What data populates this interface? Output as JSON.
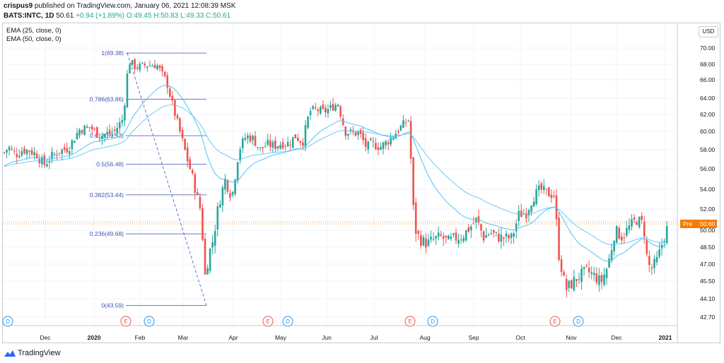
{
  "header": {
    "publisher": "crispus9",
    "published_text": "published on TradingView.com, January 06, 2021 12:08:39 MSK",
    "symbol": "BATS:INTC, 1D",
    "last": "50.61",
    "change": "+0.94 (+1.89%)",
    "ohlc": "O:49.45 H:50.83 L:49.33 C:50.61"
  },
  "indicators": [
    "EMA (25, close, 0)",
    "EMA (50, close, 0)"
  ],
  "currency_button": "USD",
  "pre_label": {
    "tag": "Pre",
    "value": "50.60"
  },
  "price_axis": {
    "ticks": [
      "70.00",
      "68.00",
      "66.00",
      "64.00",
      "62.00",
      "60.00",
      "58.00",
      "56.00",
      "54.00",
      "52.00",
      "50.00",
      "48.50",
      "47.00",
      "45.50",
      "44.10",
      "42.70"
    ]
  },
  "time_axis": {
    "ticks": [
      "Dec",
      "2020",
      "Feb",
      "Mar",
      "Apr",
      "May",
      "Jun",
      "Jul",
      "Aug",
      "Sep",
      "Oct",
      "Nov",
      "Dec",
      "2021"
    ]
  },
  "fib_levels": [
    {
      "label": "1(69.38)"
    },
    {
      "label": "0.786(63.86)"
    },
    {
      "label": "0.618(59.53)"
    },
    {
      "label": "0.5(56.48)"
    },
    {
      "label": "0.382(53.44)"
    },
    {
      "label": "0.236(49.68)"
    },
    {
      "label": "0(43.59)"
    }
  ],
  "events": [
    {
      "type": "D"
    },
    {
      "type": "E"
    },
    {
      "type": "D"
    },
    {
      "type": "E"
    },
    {
      "type": "D"
    },
    {
      "type": "E"
    },
    {
      "type": "D"
    },
    {
      "type": "E"
    },
    {
      "type": "D"
    }
  ],
  "footer": {
    "brand": "TradingView"
  },
  "colors": {
    "up": "#26a69a",
    "down": "#ef5350",
    "ema": "#4fc3f7",
    "fib": "#3f51b5",
    "pre": "#f57c00"
  },
  "chart_data": {
    "type": "candlestick",
    "symbol": "BATS:INTC",
    "interval": "1D",
    "ylim": [
      42.0,
      71.0
    ],
    "series": [
      {
        "name": "INTC",
        "close_path": [
          [
            0,
            57.3
          ],
          [
            10,
            58.3
          ],
          [
            20,
            57.5
          ],
          [
            30,
            58.0
          ],
          [
            40,
            57.9
          ],
          [
            50,
            57.5
          ],
          [
            60,
            56.4
          ],
          [
            70,
            57.2
          ],
          [
            80,
            57.8
          ],
          [
            95,
            58.2
          ],
          [
            110,
            60.2
          ],
          [
            125,
            60.5
          ],
          [
            140,
            59.5
          ],
          [
            160,
            60.0
          ],
          [
            172,
            61.5
          ],
          [
            180,
            68.4
          ],
          [
            190,
            67.6
          ],
          [
            205,
            67.9
          ],
          [
            220,
            67.9
          ],
          [
            235,
            65.5
          ],
          [
            245,
            62.2
          ],
          [
            255,
            59.2
          ],
          [
            262,
            57.2
          ],
          [
            270,
            55.2
          ],
          [
            276,
            53.5
          ],
          [
            282,
            51.8
          ],
          [
            288,
            46.0
          ],
          [
            294,
            48.0
          ],
          [
            300,
            49.3
          ],
          [
            306,
            52.0
          ],
          [
            316,
            55.0
          ],
          [
            326,
            53.2
          ],
          [
            336,
            58.0
          ],
          [
            346,
            59.5
          ],
          [
            356,
            59.2
          ],
          [
            366,
            58.0
          ],
          [
            376,
            58.6
          ],
          [
            386,
            58.4
          ],
          [
            396,
            58.7
          ],
          [
            406,
            58.7
          ],
          [
            416,
            59.5
          ],
          [
            426,
            58.8
          ],
          [
            436,
            62.4
          ],
          [
            446,
            62.6
          ],
          [
            456,
            62.3
          ],
          [
            466,
            62.8
          ],
          [
            476,
            63.4
          ],
          [
            486,
            60.0
          ],
          [
            496,
            59.8
          ],
          [
            506,
            59.8
          ],
          [
            516,
            58.3
          ],
          [
            526,
            58.6
          ],
          [
            536,
            58.3
          ],
          [
            546,
            58.9
          ],
          [
            556,
            59.7
          ],
          [
            566,
            60.6
          ],
          [
            576,
            61.4
          ],
          [
            584,
            50.2
          ],
          [
            592,
            49.2
          ],
          [
            602,
            48.8
          ],
          [
            612,
            49.2
          ],
          [
            622,
            49.4
          ],
          [
            632,
            49.0
          ],
          [
            642,
            49.3
          ],
          [
            652,
            49.5
          ],
          [
            662,
            50.2
          ],
          [
            672,
            51.0
          ],
          [
            682,
            49.4
          ],
          [
            692,
            49.8
          ],
          [
            702,
            49.4
          ],
          [
            712,
            49.3
          ],
          [
            722,
            49.3
          ],
          [
            732,
            51.5
          ],
          [
            742,
            51.6
          ],
          [
            752,
            53.2
          ],
          [
            762,
            54.0
          ],
          [
            772,
            53.6
          ],
          [
            782,
            53.4
          ],
          [
            788,
            48.0
          ],
          [
            798,
            44.8
          ],
          [
            808,
            45.4
          ],
          [
            818,
            46.0
          ],
          [
            828,
            46.4
          ],
          [
            838,
            46.0
          ],
          [
            848,
            45.4
          ],
          [
            858,
            46.9
          ],
          [
            868,
            50.0
          ],
          [
            878,
            49.4
          ],
          [
            888,
            50.3
          ],
          [
            898,
            51.0
          ],
          [
            908,
            50.6
          ],
          [
            914,
            47.0
          ],
          [
            920,
            46.6
          ],
          [
            928,
            47.4
          ],
          [
            936,
            49.2
          ],
          [
            944,
            50.6
          ]
        ]
      },
      {
        "name": "EMA (25, close, 0)"
      },
      {
        "name": "EMA (50, close, 0)"
      }
    ]
  }
}
